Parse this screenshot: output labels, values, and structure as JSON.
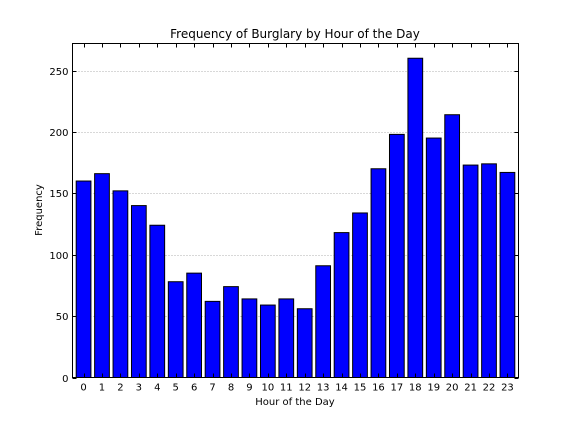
{
  "chart_data": {
    "type": "bar",
    "title": "Frequency of Burglary by Hour of the Day",
    "xlabel": "Hour of the Day",
    "ylabel": "Frequency",
    "categories": [
      "0",
      "1",
      "2",
      "3",
      "4",
      "5",
      "6",
      "7",
      "8",
      "9",
      "10",
      "11",
      "12",
      "13",
      "14",
      "15",
      "16",
      "17",
      "18",
      "19",
      "20",
      "21",
      "22",
      "23"
    ],
    "values": [
      160,
      166,
      152,
      140,
      124,
      78,
      85,
      62,
      74,
      64,
      59,
      64,
      56,
      91,
      118,
      134,
      170,
      198,
      260,
      195,
      214,
      173,
      174,
      167
    ],
    "ylim": [
      0,
      272
    ],
    "yticks": [
      0,
      50,
      100,
      150,
      200,
      250
    ],
    "grid": "horizontal-dotted",
    "bar_color": "#0000ff",
    "edge_color": "#000000",
    "grid_color": "#b0b0b0"
  }
}
